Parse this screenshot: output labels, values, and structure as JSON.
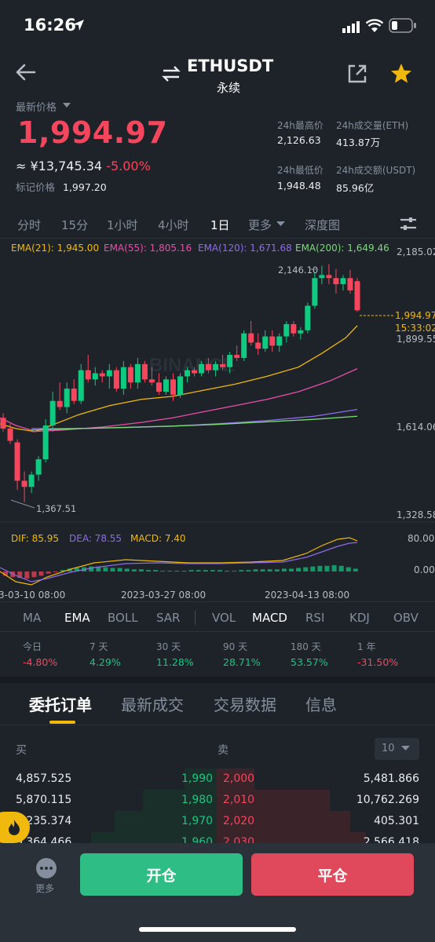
{
  "status": {
    "time": "16:26"
  },
  "header": {
    "symbol": "ETHUSDT",
    "subtitle": "永续"
  },
  "price": {
    "label": "最新价格",
    "last": "1,994.97",
    "cny": "≈ ¥13,745.34",
    "change": "-5.00%",
    "mark_label": "标记价格",
    "mark_value": "1,997.20"
  },
  "stats": {
    "high_label": "24h最高价",
    "high": "2,126.63",
    "vol_eth_label": "24h成交量(ETH)",
    "vol_eth": "413.87万",
    "low_label": "24h最低价",
    "low": "1,948.48",
    "vol_usdt_label": "24h成交额(USDT)",
    "vol_usdt": "85.96亿"
  },
  "timeframes": [
    "分时",
    "15分",
    "1小时",
    "4小时",
    "1日",
    "更多",
    "深度图"
  ],
  "chart": {
    "ema21": "EMA(21): 1,945.00",
    "ema55": "EMA(55): 1,805.16",
    "ema120": "EMA(120): 1,671.68",
    "ema200": "EMA(200): 1,649.46",
    "ticks": [
      "2,185.02",
      "1,899.55",
      "1,614.06",
      "1,328.58"
    ],
    "high_mark": "2,146.10",
    "low_mark": "1,367.51",
    "last_price_tag": "1,994.97",
    "countdown_tag": "15:33:02",
    "watermark": "BINANCE",
    "dif": "DIF: 85.95",
    "dea": "DEA: 78.55",
    "macd": "MACD: 7.40",
    "macd_ticks": [
      "80.00",
      "0.00"
    ],
    "dates": [
      "3-03-10 08:00",
      "2023-03-27 08:00",
      "2023-04-13 08:00"
    ]
  },
  "indicators": [
    "MA",
    "EMA",
    "BOLL",
    "SAR",
    "VOL",
    "MACD",
    "RSI",
    "KDJ",
    "OBV"
  ],
  "performance": [
    {
      "label": "今日",
      "value": "-4.80%"
    },
    {
      "label": "7 天",
      "value": "4.29%"
    },
    {
      "label": "30 天",
      "value": "11.28%"
    },
    {
      "label": "90 天",
      "value": "28.71%"
    },
    {
      "label": "180 天",
      "value": "53.57%"
    },
    {
      "label": "1 年",
      "value": "-31.50%"
    }
  ],
  "order_tabs": [
    "委托订单",
    "最新成交",
    "交易数据",
    "信息"
  ],
  "orderbook": {
    "buy_label": "买",
    "sell_label": "卖",
    "depth_select": "10",
    "rows": [
      {
        "bid_qty": "4,857.525",
        "bid_price": "1,990",
        "ask_price": "2,000",
        "ask_qty": "5,481.866"
      },
      {
        "bid_qty": "5,870.115",
        "bid_price": "1,980",
        "ask_price": "2,010",
        "ask_qty": "10,762.269"
      },
      {
        "bid_qty": "7,235.374",
        "bid_price": "1,970",
        "ask_price": "2,020",
        "ask_qty": "405.301"
      },
      {
        "bid_qty": "9,364.466",
        "bid_price": "1,960",
        "ask_price": "2,030",
        "ask_qty": "2,566.418"
      }
    ]
  },
  "bottom": {
    "more_label": "更多",
    "open_label": "开仓",
    "close_label": "平仓"
  },
  "colors": {
    "up": "#0ECB81",
    "down": "#F6465D",
    "accent": "#F0B90B",
    "bg": "#1E2329"
  }
}
